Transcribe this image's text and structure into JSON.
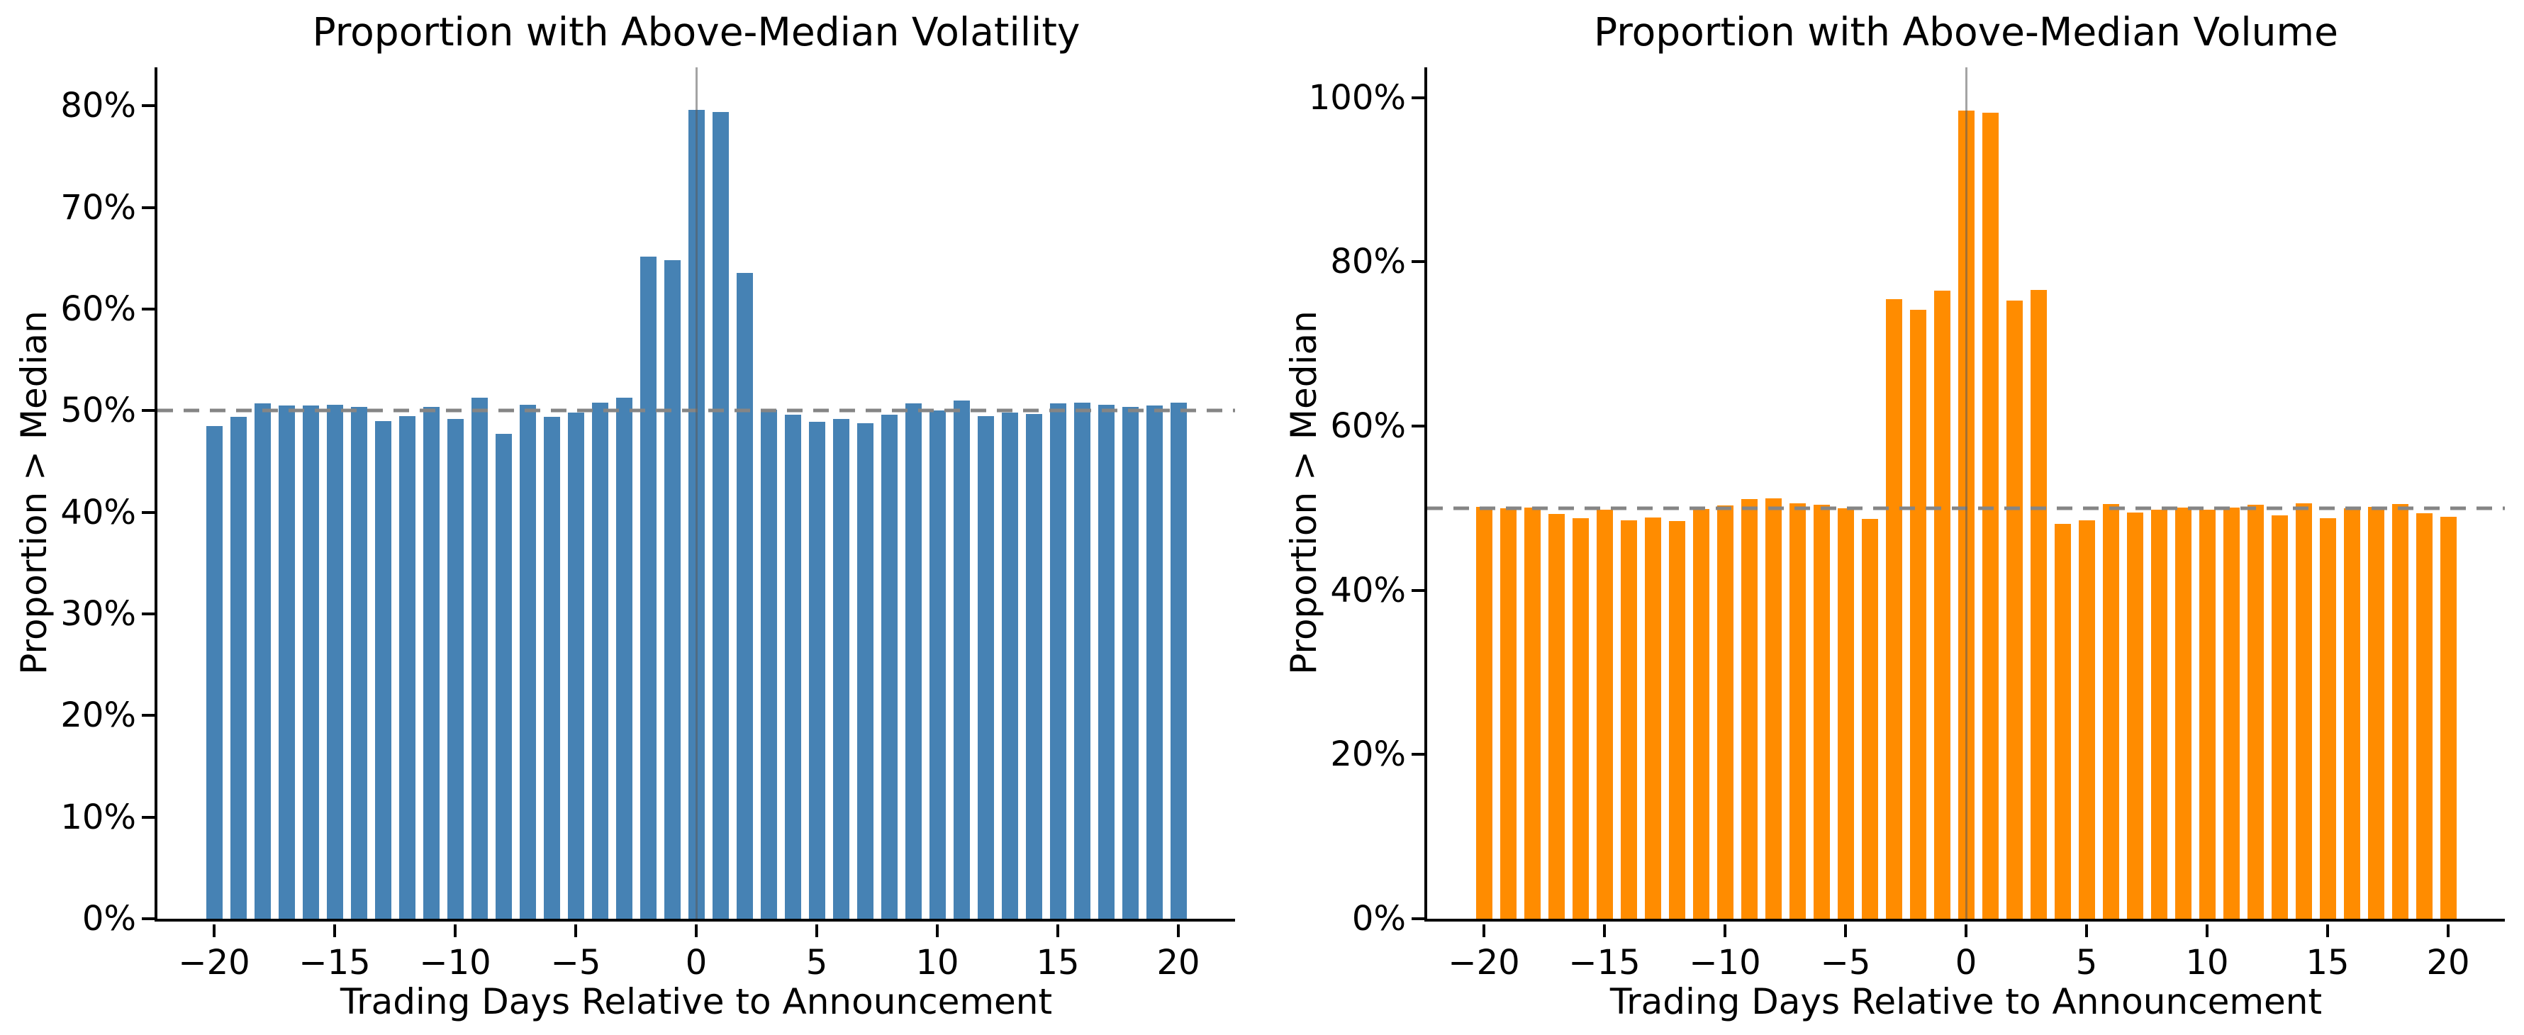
{
  "figure": {
    "background": "#ffffff",
    "reference_line_color": "#858585",
    "event_line_color": "#5a5a5a"
  },
  "chart_data": [
    {
      "type": "bar",
      "title": "Proportion with Above-Median Volatility",
      "xlabel": "Trading Days Relative to Announcement",
      "ylabel": "Proportion > Median",
      "bar_color": "#4682B4",
      "ylim": [
        0,
        83.8
      ],
      "y_tick_values": [
        0,
        10,
        20,
        30,
        40,
        50,
        60,
        70,
        80
      ],
      "y_tick_labels": [
        "0%",
        "10%",
        "20%",
        "30%",
        "40%",
        "50%",
        "60%",
        "70%",
        "80%"
      ],
      "x_tick_values": [
        -20,
        -15,
        -10,
        -5,
        0,
        5,
        10,
        15,
        20
      ],
      "x_tick_labels": [
        "−20",
        "−15",
        "−10",
        "−5",
        "0",
        "5",
        "10",
        "15",
        "20"
      ],
      "reference_line": 50,
      "event_line_x": 0,
      "x": [
        -20,
        -19,
        -18,
        -17,
        -16,
        -15,
        -14,
        -13,
        -12,
        -11,
        -10,
        -9,
        -8,
        -7,
        -6,
        -5,
        -4,
        -3,
        -2,
        -1,
        0,
        1,
        2,
        3,
        4,
        5,
        6,
        7,
        8,
        9,
        10,
        11,
        12,
        13,
        14,
        15,
        16,
        17,
        18,
        19,
        20
      ],
      "values": [
        48.5,
        49.4,
        50.7,
        50.5,
        50.5,
        50.6,
        50.4,
        49.0,
        49.5,
        50.4,
        49.2,
        51.3,
        47.7,
        50.6,
        49.4,
        49.8,
        50.8,
        51.3,
        65.2,
        64.8,
        79.6,
        79.4,
        63.6,
        50.1,
        49.6,
        48.9,
        49.2,
        48.8,
        49.6,
        50.7,
        50.0,
        51.0,
        49.5,
        49.8,
        49.7,
        50.7,
        50.8,
        50.6,
        50.4,
        50.5,
        50.8
      ]
    },
    {
      "type": "bar",
      "title": "Proportion with Above-Median Volume",
      "xlabel": "Trading Days Relative to Announcement",
      "ylabel": "Proportion > Median",
      "bar_color": "#FF8C00",
      "ylim": [
        0,
        103.7
      ],
      "y_tick_values": [
        0,
        20,
        40,
        60,
        80,
        100
      ],
      "y_tick_labels": [
        "0%",
        "20%",
        "40%",
        "60%",
        "80%",
        "100%"
      ],
      "x_tick_values": [
        -20,
        -15,
        -10,
        -5,
        0,
        5,
        10,
        15,
        20
      ],
      "x_tick_labels": [
        "−20",
        "−15",
        "−10",
        "−5",
        "0",
        "5",
        "10",
        "15",
        "20"
      ],
      "reference_line": 50,
      "event_line_x": 0,
      "x": [
        -20,
        -19,
        -18,
        -17,
        -16,
        -15,
        -14,
        -13,
        -12,
        -11,
        -10,
        -9,
        -8,
        -7,
        -6,
        -5,
        -4,
        -3,
        -2,
        -1,
        0,
        1,
        2,
        3,
        4,
        5,
        6,
        7,
        8,
        9,
        10,
        11,
        12,
        13,
        14,
        15,
        16,
        17,
        18,
        19,
        20
      ],
      "values": [
        50.2,
        50.0,
        50.1,
        49.3,
        48.8,
        49.8,
        48.5,
        48.9,
        48.4,
        49.9,
        50.3,
        51.1,
        51.2,
        50.6,
        50.4,
        50.0,
        48.7,
        75.5,
        74.2,
        76.5,
        98.4,
        98.2,
        75.3,
        76.6,
        48.1,
        48.5,
        50.5,
        49.5,
        49.8,
        50.1,
        49.8,
        50.1,
        50.4,
        49.1,
        50.6,
        48.8,
        50.0,
        50.2,
        50.5,
        49.4,
        49.0
      ]
    }
  ]
}
